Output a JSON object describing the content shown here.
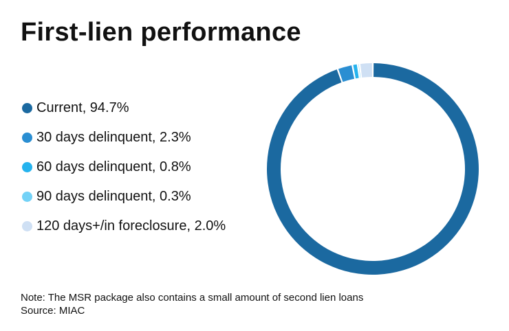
{
  "chart_data": {
    "type": "pie",
    "title": "First-lien performance",
    "categories": [
      "Current",
      "30 days delinquent",
      "60 days delinquent",
      "90 days delinquent",
      "120 days+/in foreclosure"
    ],
    "values": [
      94.7,
      2.3,
      0.8,
      0.3,
      2.0
    ],
    "legend_labels": [
      "Current, 94.7%",
      "30 days delinquent, 2.3%",
      "60 days delinquent, 0.8%",
      "90 days delinquent, 0.3%",
      "120 days+/in foreclosure, 2.0%"
    ],
    "colors": [
      "#1b69a0",
      "#2a8ed2",
      "#25b3ee",
      "#73d2f7",
      "#cfe0f4"
    ],
    "legend_position": "left",
    "donut": true
  },
  "notes": {
    "note": "Note: The MSR package also contains a small amount of second lien loans",
    "source": "Source: MIAC"
  }
}
